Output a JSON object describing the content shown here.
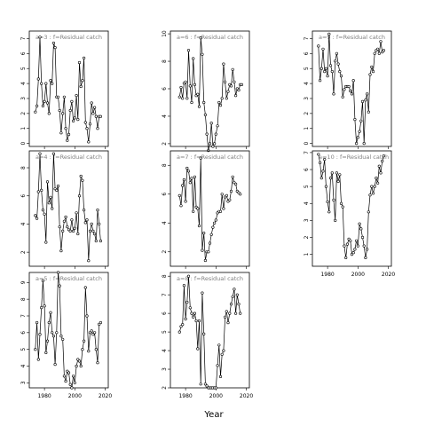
{
  "figure": {
    "xlabel": "Year"
  },
  "chart_data": [
    {
      "type": "line",
      "title": "a=3  :  f=Residual catch",
      "xlim": [
        1970,
        2022
      ],
      "ylim": [
        -0.2,
        7.5
      ],
      "yticks": [
        0,
        1,
        2,
        3,
        4,
        5,
        6,
        7
      ],
      "xticks": [
        1980,
        2000,
        2020
      ],
      "show_xtick_labels": false,
      "x": [
        1974,
        1975,
        1976,
        1977,
        1978,
        1979,
        1980,
        1981,
        1982,
        1983,
        1984,
        1985,
        1986,
        1987,
        1988,
        1989,
        1990,
        1991,
        1992,
        1993,
        1994,
        1995,
        1996,
        1997,
        1998,
        1999,
        2000,
        2001,
        2002,
        2003,
        2004,
        2005,
        2006,
        2007,
        2008,
        2009,
        2010,
        2011,
        2012,
        2013,
        2014,
        2015,
        2016,
        2017
      ],
      "y": [
        2.1,
        2.5,
        4.3,
        7.1,
        4.0,
        2.5,
        2.8,
        4.0,
        2.7,
        2.0,
        4.2,
        4.0,
        6.7,
        6.4,
        3.1,
        3.1,
        2.2,
        0.7,
        2.0,
        3.1,
        1.0,
        0.2,
        0.6,
        2.2,
        2.8,
        1.5,
        1.7,
        3.2,
        1.6,
        5.4,
        3.8,
        4.2,
        5.7,
        1.4,
        1.0,
        0.1,
        1.3,
        2.7,
        2.0,
        2.4,
        1.8,
        1.0,
        1.8,
        1.8
      ]
    },
    {
      "type": "line",
      "title": "a=6  :  f=Residual catch",
      "xlim": [
        1970,
        2022
      ],
      "ylim": [
        1.8,
        10.2
      ],
      "yticks": [
        2,
        4,
        6,
        8,
        10
      ],
      "xticks": [
        1980,
        2000,
        2020
      ],
      "show_xtick_labels": false,
      "x": [
        1976,
        1977,
        1978,
        1979,
        1980,
        1981,
        1982,
        1983,
        1984,
        1985,
        1986,
        1987,
        1988,
        1989,
        1990,
        1991,
        1992,
        1993,
        1994,
        1995,
        1996,
        1997,
        1998,
        1999,
        2000,
        2001,
        2002,
        2003,
        2004,
        2005,
        2006,
        2007,
        2008,
        2009,
        2010,
        2011,
        2012,
        2013,
        2014,
        2015,
        2016,
        2017
      ],
      "y": [
        5.4,
        6.1,
        5.3,
        6.4,
        6.5,
        5.3,
        8.8,
        6.2,
        5.0,
        8.2,
        6.3,
        5.5,
        5.6,
        4.7,
        9.7,
        8.5,
        5.0,
        4.1,
        2.7,
        1.5,
        2.0,
        3.5,
        1.8,
        2.0,
        2.7,
        3.3,
        5.0,
        4.8,
        5.3,
        7.8,
        6.5,
        5.3,
        5.8,
        6.3,
        6.2,
        7.4,
        6.5,
        5.5,
        6.0,
        5.9,
        6.3,
        6.3
      ]
    },
    {
      "type": "line",
      "title": "a=9  :  f=Residual catch",
      "xlim": [
        1970,
        2022
      ],
      "ylim": [
        -0.2,
        7.5
      ],
      "yticks": [
        0,
        1,
        2,
        3,
        4,
        5,
        6,
        7
      ],
      "xticks": [
        1980,
        2000,
        2020
      ],
      "show_xtick_labels": false,
      "x": [
        1974,
        1975,
        1976,
        1977,
        1978,
        1979,
        1980,
        1981,
        1982,
        1983,
        1984,
        1985,
        1986,
        1987,
        1988,
        1989,
        1990,
        1991,
        1992,
        1993,
        1994,
        1995,
        1996,
        1997,
        1998,
        1999,
        2000,
        2001,
        2002,
        2003,
        2004,
        2005,
        2006,
        2007,
        2008,
        2009,
        2010,
        2011,
        2012,
        2013,
        2014,
        2015,
        2016,
        2017
      ],
      "y": [
        6.5,
        4.2,
        5.0,
        6.3,
        4.8,
        5.0,
        4.5,
        7.3,
        5.2,
        4.8,
        3.3,
        5.5,
        6.0,
        5.3,
        4.8,
        4.5,
        3.1,
        3.6,
        3.8,
        3.8,
        3.8,
        3.5,
        3.3,
        4.2,
        1.6,
        0.0,
        0.4,
        0.8,
        1.5,
        2.8,
        0.0,
        2.9,
        3.3,
        2.1,
        4.6,
        5.1,
        4.8,
        6.0,
        6.2,
        6.3,
        6.0,
        6.8,
        6.1,
        6.2
      ]
    },
    {
      "type": "line",
      "title": "a=4  :  f=Residual catch",
      "xlim": [
        1970,
        2022
      ],
      "ylim": [
        1.0,
        9.2
      ],
      "yticks": [
        2,
        4,
        6,
        8
      ],
      "xticks": [
        1980,
        2000,
        2020
      ],
      "show_xtick_labels": false,
      "x": [
        1974,
        1975,
        1976,
        1977,
        1978,
        1979,
        1980,
        1981,
        1982,
        1983,
        1984,
        1985,
        1986,
        1987,
        1988,
        1989,
        1990,
        1991,
        1992,
        1993,
        1994,
        1995,
        1996,
        1997,
        1998,
        1999,
        2000,
        2001,
        2002,
        2003,
        2004,
        2005,
        2006,
        2007,
        2008,
        2009,
        2010,
        2011,
        2012,
        2013,
        2014,
        2015,
        2016,
        2017
      ],
      "y": [
        4.6,
        4.4,
        6.3,
        9.0,
        6.4,
        5.0,
        4.7,
        2.7,
        7.0,
        5.5,
        5.9,
        5.1,
        9.0,
        6.5,
        6.4,
        6.7,
        3.8,
        2.1,
        3.5,
        4.2,
        4.5,
        3.8,
        3.6,
        3.5,
        4.3,
        3.5,
        3.7,
        4.8,
        3.3,
        6.0,
        7.4,
        7.1,
        5.0,
        4.1,
        4.3,
        1.4,
        3.5,
        4.0,
        3.5,
        3.3,
        2.8,
        5.0,
        4.0,
        2.8
      ]
    },
    {
      "type": "line",
      "title": "a=7  :  f=Residual catch",
      "xlim": [
        1970,
        2022
      ],
      "ylim": [
        1.0,
        9.0
      ],
      "yticks": [
        2,
        4,
        6,
        8
      ],
      "xticks": [
        1980,
        2000,
        2020
      ],
      "show_xtick_labels": false,
      "x": [
        1976,
        1977,
        1978,
        1979,
        1980,
        1981,
        1982,
        1983,
        1984,
        1985,
        1986,
        1987,
        1988,
        1989,
        1990,
        1991,
        1992,
        1993,
        1994,
        1995,
        1996,
        1997,
        1998,
        1999,
        2000,
        2001,
        2002,
        2003,
        2004,
        2005,
        2006,
        2007,
        2008,
        2009,
        2010,
        2011,
        2012,
        2013,
        2014,
        2015,
        2016
      ],
      "y": [
        5.9,
        5.2,
        6.6,
        7.0,
        5.5,
        7.8,
        7.6,
        6.8,
        7.1,
        4.8,
        7.2,
        5.1,
        5.0,
        3.8,
        8.5,
        2.1,
        3.3,
        1.4,
        2.0,
        2.0,
        2.6,
        3.2,
        3.7,
        4.0,
        4.2,
        4.7,
        4.8,
        4.8,
        6.0,
        5.0,
        5.8,
        5.9,
        5.5,
        5.6,
        6.2,
        7.2,
        6.8,
        6.7,
        6.2,
        6.1,
        6.0
      ]
    },
    {
      "type": "line",
      "title": "a=10  :  f=Residual catch",
      "xlim": [
        1970,
        2022
      ],
      "ylim": [
        0.3,
        7.1
      ],
      "yticks": [
        1,
        2,
        3,
        4,
        5,
        6,
        7
      ],
      "xticks": [
        1980,
        2000,
        2020
      ],
      "show_xtick_labels": true,
      "x": [
        1974,
        1975,
        1976,
        1977,
        1978,
        1979,
        1980,
        1981,
        1982,
        1983,
        1984,
        1985,
        1986,
        1987,
        1988,
        1989,
        1990,
        1991,
        1992,
        1993,
        1994,
        1995,
        1996,
        1997,
        1998,
        1999,
        2000,
        2001,
        2002,
        2003,
        2004,
        2005,
        2006,
        2007,
        2008,
        2009,
        2010,
        2011,
        2012,
        2013,
        2014,
        2015,
        2016,
        2017
      ],
      "y": [
        6.9,
        6.4,
        5.5,
        5.9,
        6.6,
        5.0,
        4.1,
        3.5,
        5.5,
        5.8,
        4.2,
        3.0,
        5.8,
        5.3,
        5.7,
        4.0,
        3.8,
        1.5,
        0.8,
        1.6,
        1.9,
        1.8,
        1.0,
        1.1,
        1.3,
        1.8,
        1.5,
        2.8,
        2.5,
        2.0,
        1.5,
        0.8,
        1.3,
        3.5,
        4.5,
        5.0,
        4.6,
        5.0,
        5.5,
        5.2,
        6.2,
        5.8,
        6.5,
        6.8
      ]
    },
    {
      "type": "line",
      "title": "a=5  :  f=Residual catch",
      "xlim": [
        1970,
        2022
      ],
      "ylim": [
        2.7,
        9.6
      ],
      "yticks": [
        3,
        4,
        5,
        6,
        7,
        8,
        9
      ],
      "xticks": [
        1980,
        2000,
        2020
      ],
      "show_xtick_labels": true,
      "x": [
        1974,
        1975,
        1976,
        1977,
        1978,
        1979,
        1980,
        1981,
        1982,
        1983,
        1984,
        1985,
        1986,
        1987,
        1988,
        1989,
        1990,
        1991,
        1992,
        1993,
        1994,
        1995,
        1996,
        1997,
        1998,
        1999,
        2000,
        2001,
        2002,
        2003,
        2004,
        2005,
        2006,
        2007,
        2008,
        2009,
        2010,
        2011,
        2012,
        2013,
        2014,
        2015,
        2016,
        2017
      ],
      "y": [
        5.0,
        6.6,
        4.4,
        5.9,
        7.5,
        9.1,
        7.6,
        4.8,
        5.5,
        6.6,
        7.2,
        6.0,
        5.8,
        4.1,
        6.0,
        9.6,
        8.8,
        5.8,
        5.6,
        3.4,
        3.1,
        3.7,
        3.6,
        2.9,
        2.7,
        3.4,
        3.0,
        4.0,
        4.4,
        4.3,
        4.0,
        5.0,
        5.5,
        8.7,
        7.0,
        4.9,
        6.0,
        6.1,
        5.9,
        6.0,
        5.0,
        4.2,
        6.5,
        6.6
      ]
    },
    {
      "type": "line",
      "title": "a=8  :  f=Residual catch",
      "xlim": [
        1970,
        2022
      ],
      "ylim": [
        2.0,
        8.2
      ],
      "yticks": [
        2,
        3,
        4,
        5,
        6,
        7,
        8
      ],
      "xticks": [
        1980,
        2000,
        2020
      ],
      "show_xtick_labels": true,
      "x": [
        1976,
        1977,
        1978,
        1979,
        1980,
        1981,
        1982,
        1983,
        1984,
        1985,
        1986,
        1987,
        1988,
        1989,
        1990,
        1991,
        1992,
        1993,
        1994,
        1995,
        1996,
        1997,
        1998,
        1999,
        2000,
        2001,
        2002,
        2003,
        2004,
        2005,
        2006,
        2007,
        2008,
        2009,
        2010,
        2011,
        2012,
        2013,
        2014,
        2015,
        2016
      ],
      "y": [
        5.0,
        5.3,
        5.4,
        7.5,
        5.7,
        6.6,
        8.0,
        6.3,
        6.0,
        5.8,
        6.0,
        5.6,
        4.1,
        5.6,
        2.2,
        7.1,
        4.9,
        2.2,
        2.1,
        2.0,
        2.0,
        2.0,
        2.0,
        2.0,
        2.0,
        3.2,
        4.3,
        2.6,
        3.8,
        4.0,
        5.8,
        6.1,
        5.5,
        6.0,
        6.5,
        6.9,
        7.3,
        6.0,
        7.0,
        6.5,
        6.0
      ]
    }
  ]
}
